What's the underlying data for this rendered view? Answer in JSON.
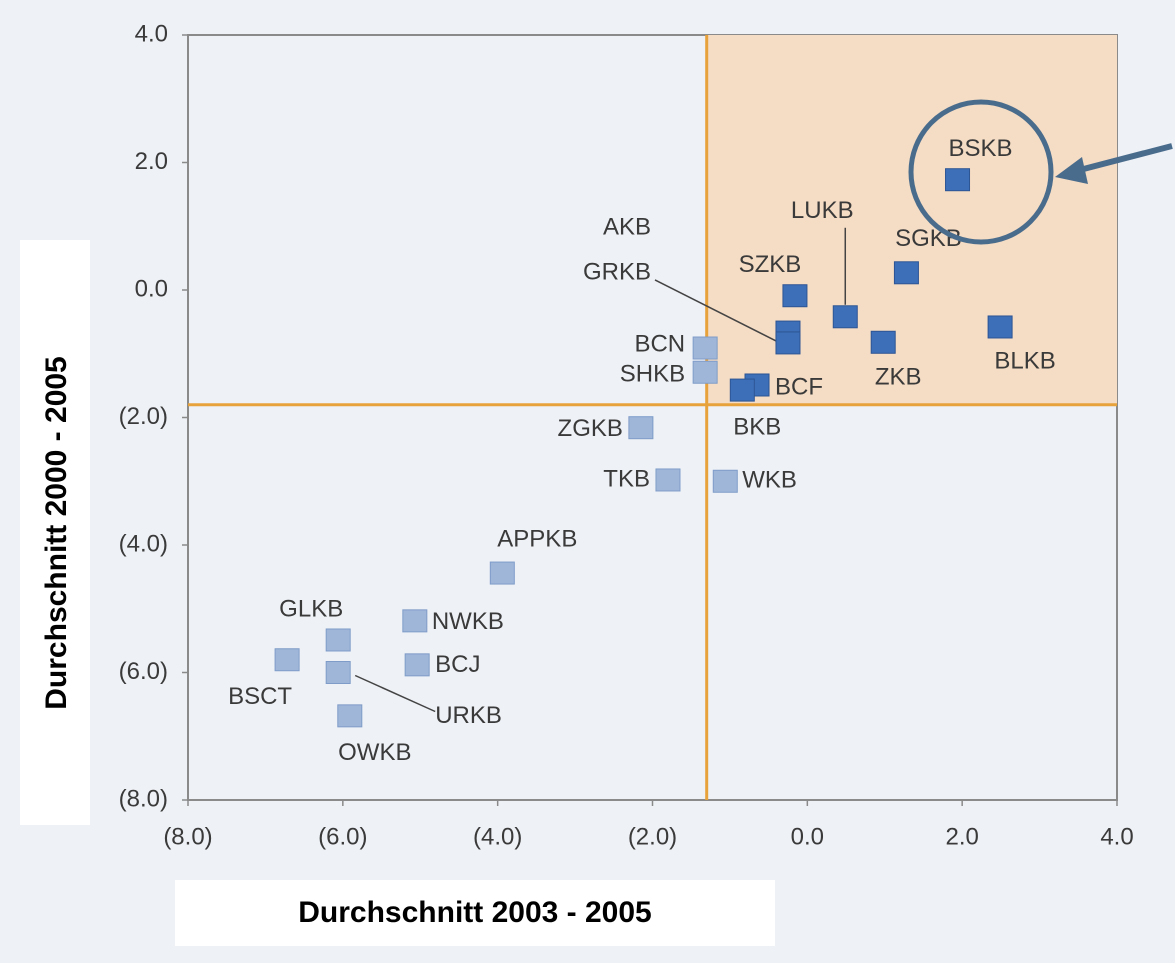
{
  "chart_data": {
    "type": "scatter",
    "xlabel": "Durchschnitt 2003 - 2005",
    "ylabel": "Durchschnitt 2000 - 2005",
    "labels": [
      "BSKB",
      "SGKB",
      "LUKB",
      "SZKB",
      "BLKB",
      "ZKB",
      "AKB",
      "GRKB",
      "BCN",
      "SHKB",
      "BCF",
      "BKB",
      "ZGKB",
      "TKB",
      "WKB",
      "APPKB",
      "NWKB",
      "BCJ",
      "GLKB",
      "URKB",
      "BSCT",
      "OWKB"
    ],
    "x": [
      1.94,
      1.28,
      0.49,
      -0.16,
      2.49,
      0.98,
      -0.25,
      -0.25,
      -1.32,
      -1.32,
      -0.65,
      -0.84,
      -2.15,
      -1.8,
      -1.06,
      -3.94,
      -5.07,
      -5.04,
      -6.06,
      -6.06,
      -6.72,
      -5.91
    ],
    "values": [
      1.73,
      0.27,
      -0.42,
      -0.09,
      -0.58,
      -0.82,
      -0.66,
      -0.83,
      -0.91,
      -1.29,
      -1.49,
      -1.57,
      -2.16,
      -2.98,
      -3.0,
      -4.44,
      -5.19,
      -5.88,
      -5.49,
      -6.0,
      -5.8,
      -6.68
    ],
    "xlim": [
      -8,
      4
    ],
    "ylim": [
      -8,
      4
    ],
    "xticks": [
      {
        "value": -8,
        "label": "(8.0)"
      },
      {
        "value": -6,
        "label": "(6.0)"
      },
      {
        "value": -4,
        "label": "(4.0)"
      },
      {
        "value": -2,
        "label": "(2.0)"
      },
      {
        "value": 0,
        "label": "0.0"
      },
      {
        "value": 2,
        "label": "2.0"
      },
      {
        "value": 4,
        "label": "4.0"
      }
    ],
    "yticks": [
      {
        "value": -8,
        "label": "(8.0)"
      },
      {
        "value": -6,
        "label": "(6.0)"
      },
      {
        "value": -4,
        "label": "(4.0)"
      },
      {
        "value": -2,
        "label": "(2.0)"
      },
      {
        "value": 0,
        "label": "0.0"
      },
      {
        "value": 2,
        "label": "2.0"
      },
      {
        "value": 4,
        "label": "4.0"
      }
    ],
    "vline": -1.3,
    "hline": -1.8,
    "color": "#3d6fb8",
    "color_outside": "#9fb6d9",
    "line_color": "#e8a23c",
    "highlight_color": "#f5dcc4"
  }
}
